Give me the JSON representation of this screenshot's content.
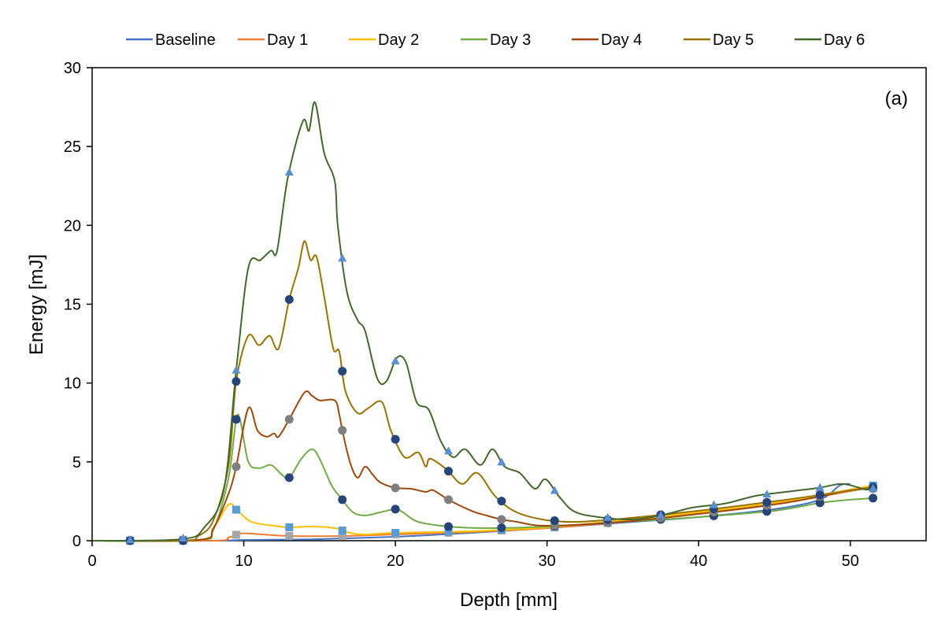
{
  "chart_data": {
    "type": "line",
    "title": "",
    "annotation": "(a)",
    "xlabel": "Depth [mm]",
    "ylabel": "Energy [mJ]",
    "xlim": [
      0,
      55
    ],
    "ylim": [
      0,
      30
    ],
    "xticks": [
      0,
      10,
      20,
      30,
      40,
      50
    ],
    "yticks": [
      0,
      5,
      10,
      15,
      20,
      25,
      30
    ],
    "grid": false,
    "legend_position": "top",
    "marker_x": [
      2.5,
      6,
      9.5,
      13,
      16.5,
      20,
      23.5,
      27,
      30.5,
      34,
      37.5,
      41,
      44.5,
      48,
      51.5
    ],
    "series": [
      {
        "name": "Baseline",
        "color": "#4472c4",
        "marker": "none",
        "marker_color": "",
        "points": [
          [
            0,
            0
          ],
          [
            8,
            0
          ],
          [
            10,
            0.05
          ],
          [
            15,
            0.1
          ],
          [
            20,
            0.25
          ],
          [
            25,
            0.5
          ],
          [
            30,
            0.8
          ],
          [
            35,
            1.15
          ],
          [
            40,
            1.5
          ],
          [
            45,
            2.0
          ],
          [
            48,
            2.6
          ],
          [
            49.3,
            3.5
          ],
          [
            50,
            3.6
          ]
        ]
      },
      {
        "name": "Day 1",
        "color": "#ed7d31",
        "marker": "square",
        "marker_color": "#a5a5a5",
        "points": [
          [
            0,
            0
          ],
          [
            8,
            0
          ],
          [
            9,
            0.2
          ],
          [
            9.7,
            0.45
          ],
          [
            10.5,
            0.45
          ],
          [
            13,
            0.3
          ],
          [
            16.5,
            0.3
          ],
          [
            20,
            0.4
          ],
          [
            25,
            0.55
          ],
          [
            30,
            0.8
          ],
          [
            35,
            1.2
          ],
          [
            40,
            1.7
          ],
          [
            45,
            2.3
          ],
          [
            48,
            2.8
          ],
          [
            51.5,
            3.4
          ]
        ]
      },
      {
        "name": "Day 2",
        "color": "#ffc000",
        "marker": "square",
        "marker_color": "#5b9bd5",
        "points": [
          [
            0,
            0
          ],
          [
            7,
            0.05
          ],
          [
            8,
            0.8
          ],
          [
            9,
            2.3
          ],
          [
            9.6,
            1.9
          ],
          [
            10.5,
            1.2
          ],
          [
            12,
            0.95
          ],
          [
            13,
            0.85
          ],
          [
            14.5,
            0.9
          ],
          [
            16,
            0.8
          ],
          [
            17,
            0.5
          ],
          [
            18,
            0.4
          ],
          [
            20,
            0.5
          ],
          [
            25,
            0.6
          ],
          [
            30,
            0.85
          ],
          [
            35,
            1.3
          ],
          [
            40,
            1.8
          ],
          [
            45,
            2.4
          ],
          [
            48,
            2.9
          ],
          [
            51.5,
            3.5
          ]
        ]
      },
      {
        "name": "Day 3",
        "color": "#70ad47",
        "marker": "circle",
        "marker_color": "#264478",
        "points": [
          [
            0,
            0
          ],
          [
            7,
            0.05
          ],
          [
            8,
            0.7
          ],
          [
            9,
            4.0
          ],
          [
            9.5,
            7.7
          ],
          [
            9.8,
            7.5
          ],
          [
            10.3,
            5.0
          ],
          [
            11,
            4.6
          ],
          [
            11.8,
            4.8
          ],
          [
            12.5,
            4.2
          ],
          [
            13,
            4.0
          ],
          [
            13.8,
            5.2
          ],
          [
            14.5,
            5.8
          ],
          [
            15,
            5.2
          ],
          [
            15.8,
            3.5
          ],
          [
            16.5,
            2.6
          ],
          [
            17.2,
            1.8
          ],
          [
            18,
            1.6
          ],
          [
            19,
            1.8
          ],
          [
            20,
            2.0
          ],
          [
            20.5,
            1.8
          ],
          [
            21.5,
            1.2
          ],
          [
            23.5,
            0.9
          ],
          [
            26,
            0.8
          ],
          [
            30,
            0.9
          ],
          [
            35,
            1.2
          ],
          [
            40,
            1.5
          ],
          [
            45,
            1.9
          ],
          [
            48,
            2.4
          ],
          [
            50,
            2.6
          ],
          [
            51.5,
            2.7
          ]
        ]
      },
      {
        "name": "Day 4",
        "color": "#9e480e",
        "marker": "circle",
        "marker_color": "#7f7f7f",
        "points": [
          [
            0,
            0
          ],
          [
            7,
            0.05
          ],
          [
            8,
            0.8
          ],
          [
            9,
            3.0
          ],
          [
            9.5,
            4.7
          ],
          [
            10.3,
            8.4
          ],
          [
            10.9,
            7.0
          ],
          [
            11.5,
            6.6
          ],
          [
            12,
            6.8
          ],
          [
            12.3,
            6.6
          ],
          [
            13,
            7.7
          ],
          [
            14,
            9.4
          ],
          [
            14.5,
            9.2
          ],
          [
            15,
            8.9
          ],
          [
            16,
            8.9
          ],
          [
            16.3,
            8.0
          ],
          [
            16.5,
            7.0
          ],
          [
            17,
            5.0
          ],
          [
            17.5,
            4.0
          ],
          [
            18,
            4.7
          ],
          [
            18.5,
            4.2
          ],
          [
            19,
            3.7
          ],
          [
            20,
            3.35
          ],
          [
            21,
            3.3
          ],
          [
            22,
            3.1
          ],
          [
            22.5,
            3.2
          ],
          [
            23.5,
            2.6
          ],
          [
            25,
            1.9
          ],
          [
            26,
            1.6
          ],
          [
            27,
            1.35
          ],
          [
            28,
            1.2
          ],
          [
            30,
            0.95
          ],
          [
            35,
            1.2
          ],
          [
            40,
            1.7
          ],
          [
            45,
            2.3
          ],
          [
            48,
            2.8
          ],
          [
            50,
            3.2
          ],
          [
            51.5,
            3.3
          ]
        ]
      },
      {
        "name": "Day 5",
        "color": "#997300",
        "marker": "circle",
        "marker_color": "#264478",
        "points": [
          [
            0,
            0
          ],
          [
            6,
            0
          ],
          [
            7,
            0.3
          ],
          [
            8,
            1.3
          ],
          [
            9,
            4.8
          ],
          [
            9.5,
            10.1
          ],
          [
            10.3,
            13.0
          ],
          [
            11,
            12.4
          ],
          [
            11.7,
            13.0
          ],
          [
            12.3,
            12.2
          ],
          [
            13,
            15.3
          ],
          [
            13.6,
            17.3
          ],
          [
            14,
            19.0
          ],
          [
            14.4,
            17.8
          ],
          [
            14.8,
            18.0
          ],
          [
            15.3,
            15.5
          ],
          [
            15.9,
            12.2
          ],
          [
            16.3,
            12.0
          ],
          [
            16.7,
            9.5
          ],
          [
            17.5,
            8.1
          ],
          [
            18.2,
            8.4
          ],
          [
            19.1,
            8.8
          ],
          [
            19.7,
            7.0
          ],
          [
            20.6,
            5.3
          ],
          [
            21.5,
            5.6
          ],
          [
            22,
            4.7
          ],
          [
            22.3,
            5.2
          ],
          [
            23.4,
            4.5
          ],
          [
            24.4,
            3.6
          ],
          [
            25.4,
            4.3
          ],
          [
            26.6,
            2.8
          ],
          [
            28,
            1.8
          ],
          [
            30,
            1.3
          ],
          [
            32,
            1.2
          ],
          [
            35,
            1.4
          ],
          [
            40,
            1.9
          ],
          [
            45,
            2.5
          ],
          [
            48,
            2.9
          ],
          [
            51.5,
            3.4
          ]
        ]
      },
      {
        "name": "Day 6",
        "color": "#43682b",
        "marker": "triangle",
        "marker_color": "#5b8fd0",
        "points": [
          [
            0,
            0
          ],
          [
            5.9,
            0.1
          ],
          [
            7.4,
            0.85
          ],
          [
            8.7,
            3.3
          ],
          [
            9.5,
            10.8
          ],
          [
            10.3,
            17.3
          ],
          [
            11.1,
            17.8
          ],
          [
            11.8,
            18.4
          ],
          [
            12.2,
            18.4
          ],
          [
            12.9,
            23.0
          ],
          [
            13.9,
            26.6
          ],
          [
            14.3,
            26.0
          ],
          [
            14.7,
            27.8
          ],
          [
            15.3,
            24.6
          ],
          [
            16,
            22.8
          ],
          [
            16.2,
            20.0
          ],
          [
            16.8,
            15.8
          ],
          [
            17.5,
            14.0
          ],
          [
            18,
            13.3
          ],
          [
            18.8,
            10.3
          ],
          [
            19.4,
            10.1
          ],
          [
            20.1,
            11.6
          ],
          [
            20.7,
            11.3
          ],
          [
            21.4,
            8.8
          ],
          [
            22.2,
            8.3
          ],
          [
            23,
            6.3
          ],
          [
            23.8,
            5.3
          ],
          [
            24.6,
            5.8
          ],
          [
            25.6,
            4.8
          ],
          [
            26.4,
            5.8
          ],
          [
            27.2,
            4.7
          ],
          [
            28.2,
            4.3
          ],
          [
            29.2,
            3.3
          ],
          [
            29.9,
            3.9
          ],
          [
            30.8,
            2.8
          ],
          [
            31.8,
            1.85
          ],
          [
            33.4,
            1.5
          ],
          [
            35.5,
            1.35
          ],
          [
            37.5,
            1.6
          ],
          [
            39.6,
            2.1
          ],
          [
            41.7,
            2.35
          ],
          [
            43.8,
            2.85
          ],
          [
            45.8,
            3.1
          ],
          [
            47.9,
            3.35
          ],
          [
            49.5,
            3.6
          ],
          [
            51,
            3.25
          ],
          [
            51.5,
            3.3
          ]
        ]
      }
    ]
  }
}
